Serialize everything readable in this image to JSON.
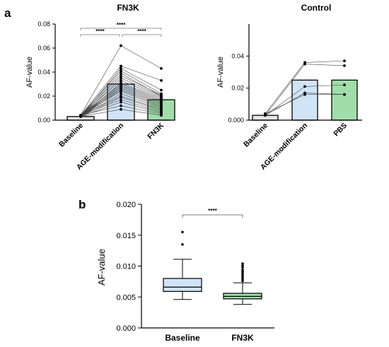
{
  "panels": {
    "a": "a",
    "b": "b"
  },
  "chart_data": [
    {
      "type": "bar",
      "title": "FN3K",
      "ylabel": "AF-value",
      "categories": [
        "Baseline",
        "AGE-modification",
        "FN3K"
      ],
      "values": [
        0.003,
        0.03,
        0.017
      ],
      "ylim": [
        0,
        0.08
      ],
      "yticks": [
        "0.00",
        "0.02",
        "0.04",
        "0.06",
        "0.08"
      ],
      "bar_colors": [
        "#e6e6e6",
        "#cfe4f7",
        "#9fdea8"
      ],
      "paired_series": [
        [
          0.004,
          0.062,
          0.043
        ],
        [
          0.004,
          0.045,
          0.033
        ],
        [
          0.003,
          0.043,
          0.025
        ],
        [
          0.004,
          0.041,
          0.022
        ],
        [
          0.003,
          0.039,
          0.02
        ],
        [
          0.004,
          0.037,
          0.021
        ],
        [
          0.003,
          0.035,
          0.02
        ],
        [
          0.004,
          0.033,
          0.019
        ],
        [
          0.003,
          0.031,
          0.018
        ],
        [
          0.004,
          0.03,
          0.017
        ],
        [
          0.003,
          0.029,
          0.016
        ],
        [
          0.004,
          0.028,
          0.015
        ],
        [
          0.003,
          0.027,
          0.014
        ],
        [
          0.004,
          0.026,
          0.013
        ],
        [
          0.003,
          0.025,
          0.012
        ],
        [
          0.004,
          0.024,
          0.011
        ],
        [
          0.003,
          0.022,
          0.01
        ],
        [
          0.004,
          0.02,
          0.009
        ],
        [
          0.003,
          0.019,
          0.008
        ],
        [
          0.004,
          0.017,
          0.007
        ],
        [
          0.003,
          0.015,
          0.006
        ],
        [
          0.004,
          0.012,
          0.005
        ],
        [
          0.003,
          0.009,
          0.004
        ]
      ],
      "significance": [
        {
          "from": 0,
          "to": 2,
          "label": "****"
        },
        {
          "from": 0,
          "to": 1,
          "label": "****"
        },
        {
          "from": 1,
          "to": 2,
          "label": "****"
        }
      ]
    },
    {
      "type": "bar",
      "title": "Control",
      "ylabel": "AF-value",
      "categories": [
        "Baseline",
        "AGE-modification",
        "PBS"
      ],
      "values": [
        0.003,
        0.025,
        0.025
      ],
      "ylim": [
        0,
        0.06
      ],
      "yticks": [
        "0.000",
        "0.02",
        "0.04"
      ],
      "bar_colors": [
        "#e6e6e6",
        "#cfe4f7",
        "#9fdea8"
      ],
      "paired_series": [
        [
          0.004,
          0.036,
          0.037
        ],
        [
          0.003,
          0.035,
          0.034
        ],
        [
          0.003,
          0.021,
          0.022
        ],
        [
          0.003,
          0.017,
          0.016
        ],
        [
          0.004,
          0.016,
          0.016
        ]
      ]
    },
    {
      "type": "box",
      "ylabel": "AF-value",
      "categories": [
        "Baseline",
        "FN3K"
      ],
      "ylim": [
        0,
        0.02
      ],
      "yticks": [
        "0.000",
        "0.005",
        "0.010",
        "0.015",
        "0.020"
      ],
      "box_colors": [
        "#cfe4f7",
        "#9fdea8"
      ],
      "boxes": [
        {
          "whisker_low": 0.0046,
          "q1": 0.0059,
          "median": 0.0066,
          "q3": 0.008,
          "whisker_high": 0.0111,
          "outliers": [
            0.0135,
            0.0155
          ]
        },
        {
          "whisker_low": 0.0038,
          "q1": 0.0047,
          "median": 0.0051,
          "q3": 0.0056,
          "whisker_high": 0.0073,
          "outliers": [
            0.0076,
            0.0079,
            0.0082,
            0.0085,
            0.0088,
            0.0091,
            0.0094,
            0.0098,
            0.0101,
            0.0104
          ]
        }
      ],
      "significance": [
        {
          "from": 0,
          "to": 1,
          "label": "****"
        }
      ]
    }
  ]
}
